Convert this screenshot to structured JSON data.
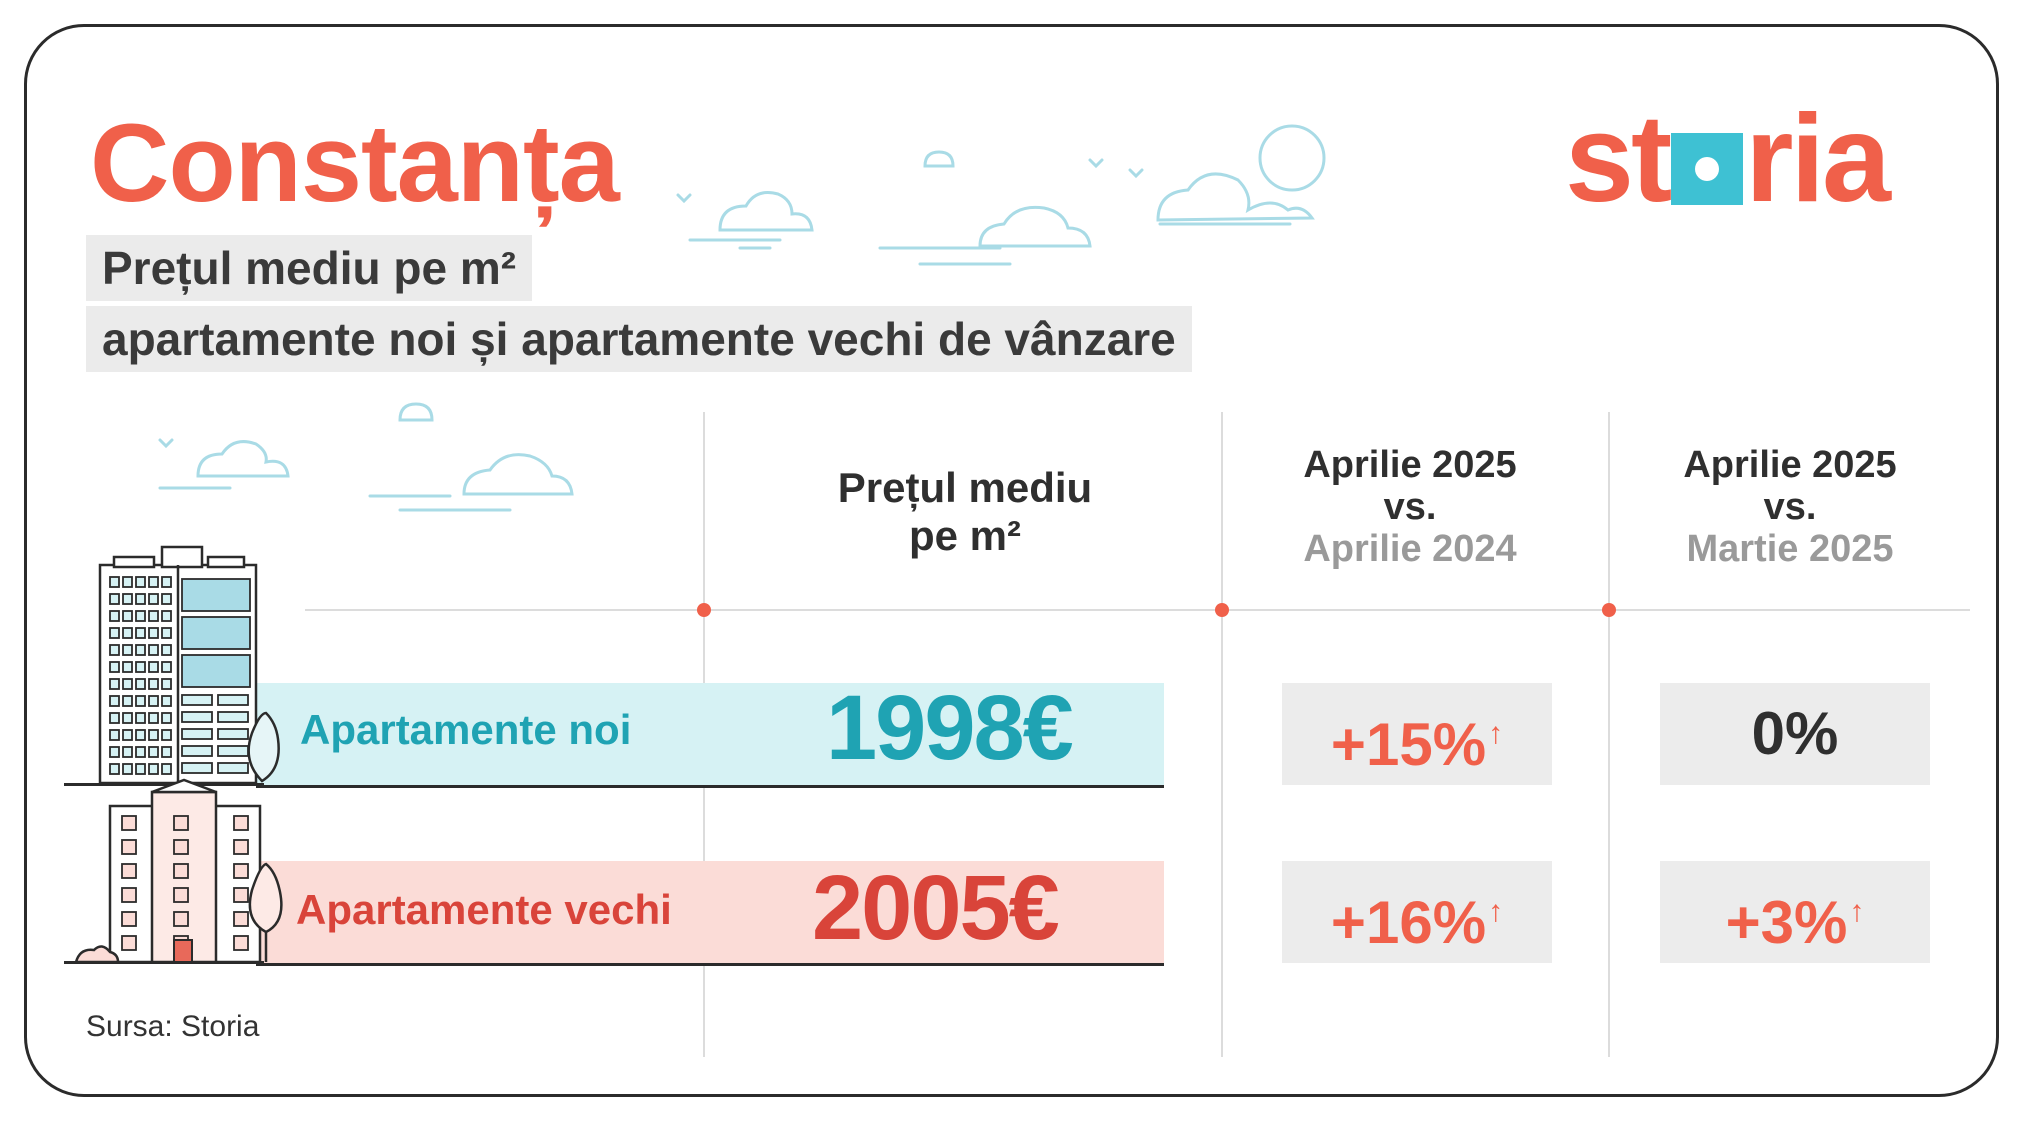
{
  "header": {
    "city": "Constanța",
    "subtitle_line1": "Prețul mediu pe m²",
    "subtitle_line2": "apartamente noi și apartamente vechi de vânzare",
    "logo": {
      "part1": "st",
      "part2": "ria",
      "icon": "storia-square-logo-icon"
    }
  },
  "columns": {
    "price": {
      "line1": "Prețul mediu",
      "line2": "pe m²"
    },
    "yoy": {
      "line1": "Aprilie 2025",
      "line2": "vs.",
      "line3": "Aprilie 2024"
    },
    "mom": {
      "line1": "Aprilie 2025",
      "line2": "vs.",
      "line3": "Martie 2025"
    }
  },
  "rows": [
    {
      "label": "Apartamente noi",
      "price": "1998€",
      "yoy": "+15%",
      "yoy_trend": "up",
      "mom": "0%",
      "mom_trend": "flat"
    },
    {
      "label": "Apartamente vechi",
      "price": "2005€",
      "yoy": "+16%",
      "yoy_trend": "up",
      "mom": "+3%",
      "mom_trend": "up"
    }
  ],
  "trend_glyph": "↑",
  "source": "Sursa: Storia",
  "colors": {
    "accent": "#f0604a",
    "teal": "#1fa3b3",
    "teal_band": "#d6f2f4",
    "red": "#d9443a",
    "red_band": "#fbdcd7",
    "cloud": "#a9dbe6"
  }
}
